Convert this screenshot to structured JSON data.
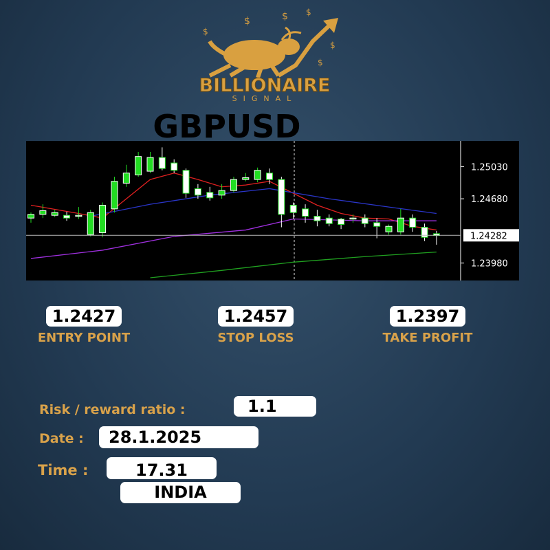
{
  "logo": {
    "title": "BILLIONAIRE",
    "subtitle": "SIGNAL"
  },
  "chart_data": {
    "type": "candlestick",
    "title": "GBPUSD",
    "open": [
      1.2447,
      1.2451,
      1.245,
      1.245,
      1.2449,
      1.2429,
      1.2431,
      1.2457,
      1.2485,
      1.2494,
      1.2498,
      1.2513,
      1.2507,
      1.2499,
      1.2479,
      1.2475,
      1.2472,
      1.2477,
      1.2489,
      1.2489,
      1.2496,
      1.2489,
      1.2461,
      1.2457,
      1.2449,
      1.2447,
      1.2446,
      1.2446,
      1.2447,
      1.2442,
      1.2432,
      1.2432,
      1.2447,
      1.2437,
      1.243
    ],
    "high": [
      1.2453,
      1.2462,
      1.2456,
      1.2454,
      1.2459,
      1.2456,
      1.2464,
      1.2492,
      1.2505,
      1.2519,
      1.2519,
      1.2524,
      1.2511,
      1.2501,
      1.2484,
      1.2481,
      1.2484,
      1.2492,
      1.2496,
      1.2502,
      1.2501,
      1.2492,
      1.2464,
      1.2462,
      1.2456,
      1.2451,
      1.2447,
      1.2451,
      1.2451,
      1.2447,
      1.244,
      1.2457,
      1.2451,
      1.2441,
      1.2433
    ],
    "low": [
      1.2442,
      1.2447,
      1.2448,
      1.2444,
      1.2446,
      1.2427,
      1.2426,
      1.2453,
      1.2481,
      1.2492,
      1.2496,
      1.2499,
      1.2496,
      1.2469,
      1.2468,
      1.2466,
      1.2468,
      1.2475,
      1.2487,
      1.2486,
      1.2484,
      1.2437,
      1.2446,
      1.2442,
      1.2438,
      1.2438,
      1.2435,
      1.2442,
      1.2437,
      1.2425,
      1.2429,
      1.2429,
      1.2432,
      1.2422,
      1.2418
    ],
    "close": [
      1.2451,
      1.2455,
      1.2453,
      1.2447,
      1.245,
      1.2453,
      1.2461,
      1.2487,
      1.2496,
      1.2514,
      1.2513,
      1.2501,
      1.2499,
      1.2474,
      1.2472,
      1.2469,
      1.2477,
      1.2489,
      1.2491,
      1.2499,
      1.2489,
      1.2451,
      1.2453,
      1.2449,
      1.2444,
      1.2441,
      1.244,
      1.2447,
      1.2441,
      1.2438,
      1.2438,
      1.2447,
      1.2437,
      1.2426,
      1.2428
    ],
    "up_color": "#22dd22",
    "down_color": "#ffffff",
    "lines": [
      {
        "color": "#e02020",
        "x": [
          0,
          4,
          6,
          8,
          10,
          12,
          14,
          16,
          18,
          20,
          22,
          24,
          26,
          28,
          30,
          32,
          34
        ],
        "values": [
          1.2461,
          1.2452,
          1.2447,
          1.2468,
          1.2489,
          1.2496,
          1.2489,
          1.2481,
          1.2483,
          1.2487,
          1.2474,
          1.2461,
          1.2452,
          1.2447,
          1.2446,
          1.2438,
          1.2434
        ]
      },
      {
        "color": "#2a35c8",
        "x": [
          5,
          10,
          15,
          20,
          25,
          30,
          34
        ],
        "values": [
          1.2449,
          1.2462,
          1.2472,
          1.2479,
          1.2468,
          1.2459,
          1.2452
        ]
      },
      {
        "color": "#a030e0",
        "x": [
          0,
          6,
          12,
          18,
          22,
          28,
          34
        ],
        "values": [
          1.2403,
          1.2412,
          1.2427,
          1.2434,
          1.2446,
          1.2444,
          1.2444
        ]
      },
      {
        "color": "#20a020",
        "x": [
          10,
          16,
          22,
          28,
          34
        ],
        "values": [
          1.2382,
          1.239,
          1.2399,
          1.2405,
          1.241
        ]
      }
    ],
    "ylim": [
      1.2379,
      1.2531
    ],
    "yticks": [
      {
        "value": 1.2503,
        "label": "1.25030"
      },
      {
        "value": 1.2468,
        "label": "1.24680"
      },
      {
        "value": 1.2398,
        "label": "1.23980"
      }
    ],
    "current_price": 1.24282
  },
  "signal": {
    "items": [
      {
        "value": "1.2427",
        "label": "ENTRY POINT"
      },
      {
        "value": "1.2457",
        "label": "STOP LOSS"
      },
      {
        "value": "1.2397",
        "label": "TAKE PROFIT"
      }
    ],
    "risk_reward": {
      "label": "Risk / reward ratio :",
      "value": "1.1"
    },
    "date": {
      "label": "Date :",
      "value": "28.1.2025"
    },
    "time": {
      "label": "Time :",
      "value": "17.31"
    },
    "country": "INDIA"
  }
}
